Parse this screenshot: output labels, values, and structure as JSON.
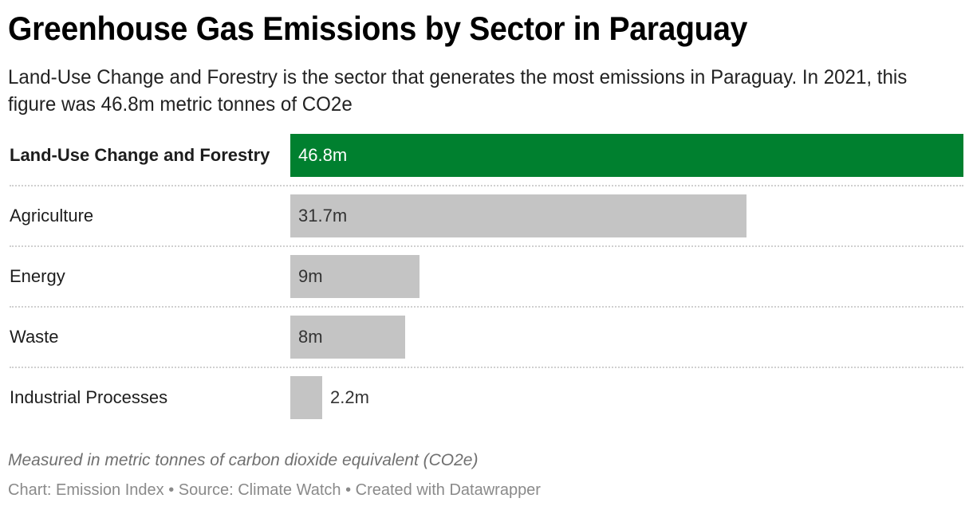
{
  "header": {
    "title": "Greenhouse Gas Emissions by Sector in Paraguay",
    "subtitle": "Land-Use Change and Forestry is the sector that generates the most emissions in Paraguay. In 2021, this figure was 46.8m metric tonnes of CO2e"
  },
  "colors": {
    "highlight": "#00802f",
    "default_bar": "#c4c4c4",
    "separator": "#d0d0d0"
  },
  "rows": [
    {
      "label": "Land-Use Change and Forestry",
      "value": 46.8,
      "value_label": "46.8m",
      "highlight": true
    },
    {
      "label": "Agriculture",
      "value": 31.7,
      "value_label": "31.7m",
      "highlight": false
    },
    {
      "label": "Energy",
      "value": 9,
      "value_label": "9m",
      "highlight": false
    },
    {
      "label": "Waste",
      "value": 8,
      "value_label": "8m",
      "highlight": false
    },
    {
      "label": "Industrial Processes",
      "value": 2.2,
      "value_label": "2.2m",
      "highlight": false
    }
  ],
  "notes": {
    "unit_note": "Measured in metric tonnes of carbon dioxide equivalent (CO2e)",
    "footer": "Chart: Emission Index • Source: Climate Watch • Created with Datawrapper"
  },
  "chart_data": {
    "type": "bar",
    "orientation": "horizontal",
    "title": "Greenhouse Gas Emissions by Sector in Paraguay",
    "subtitle": "Land-Use Change and Forestry is the sector that generates the most emissions in Paraguay. In 2021, this figure was 46.8m metric tonnes of CO2e",
    "categories": [
      "Land-Use Change and Forestry",
      "Agriculture",
      "Energy",
      "Waste",
      "Industrial Processes"
    ],
    "values": [
      46.8,
      31.7,
      9,
      8,
      2.2
    ],
    "value_labels": [
      "46.8m",
      "31.7m",
      "9m",
      "8m",
      "2.2m"
    ],
    "unit": "million metric tonnes CO2e",
    "xlabel": "",
    "ylabel": "",
    "xlim": [
      0,
      46.8
    ],
    "grid": false,
    "legend": null,
    "highlighted_category": "Land-Use Change and Forestry",
    "annotations": [
      "Measured in metric tonnes of carbon dioxide equivalent (CO2e)"
    ],
    "source": "Chart: Emission Index • Source: Climate Watch • Created with Datawrapper"
  }
}
